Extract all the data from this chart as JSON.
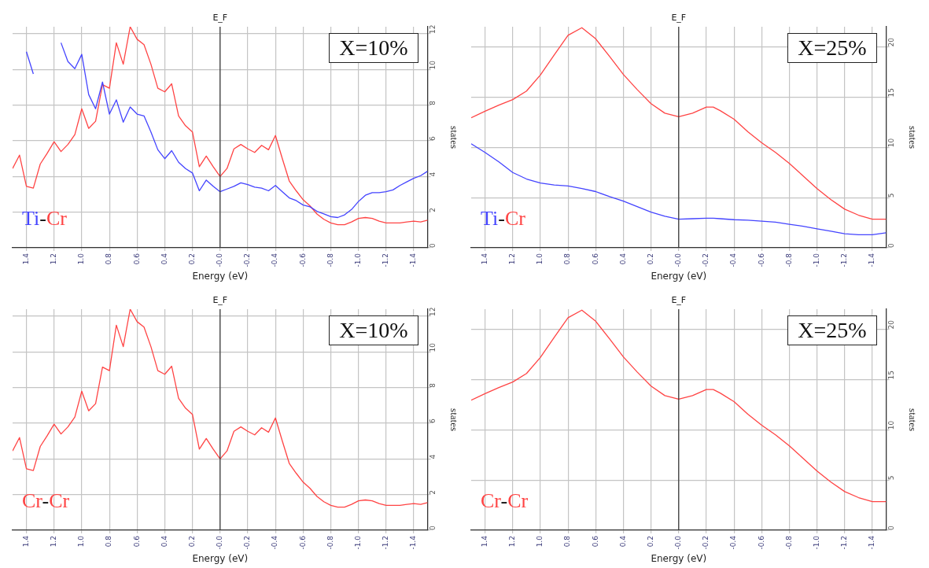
{
  "chart_data": [
    {
      "type": "line",
      "xlabel": "Energy (eV)",
      "ylabel": "states",
      "annotations": [
        "X=10%",
        "Ti-Cr"
      ],
      "grid": true,
      "marker": "none",
      "xlim": [
        1.5,
        -1.5
      ],
      "xticks": [
        1.4,
        1.2,
        {
          "value": 1,
          "label": "1.0"
        },
        0.8,
        0.6,
        0.4,
        0.2,
        {
          "value": 0,
          "label": "-0.0"
        },
        -0.2,
        -0.4,
        -0.6,
        -0.8,
        {
          "value": -1,
          "label": "-1.0"
        },
        -1.2,
        -1.4
      ],
      "ylim": [
        0,
        12.4
      ],
      "yticks": [
        0,
        2,
        4,
        6,
        8,
        10,
        12
      ],
      "ref_lines": [
        {
          "axis": "x",
          "value": 0,
          "label": "E_F",
          "color": "#333333"
        }
      ],
      "x": [
        1.5,
        1.45,
        1.4,
        1.35,
        1.3,
        1.25,
        1.2,
        1.15,
        1.1,
        1.05,
        1.0,
        0.95,
        0.9,
        0.85,
        0.8,
        0.75,
        0.7,
        0.65,
        0.6,
        0.55,
        0.5,
        0.45,
        0.4,
        0.35,
        0.3,
        0.25,
        0.2,
        0.15,
        0.1,
        0.05,
        0,
        -0.05,
        -0.1,
        -0.15,
        -0.2,
        -0.25,
        -0.3,
        -0.35,
        -0.4,
        -0.45,
        -0.5,
        -0.55,
        -0.6,
        -0.65,
        -0.7,
        -0.75,
        -0.8,
        -0.85,
        -0.9,
        -0.95,
        -1.0,
        -1.05,
        -1.1,
        -1.15,
        -1.2,
        -1.25,
        -1.3,
        -1.35,
        -1.4,
        -1.45,
        -1.5
      ],
      "series": [
        {
          "color": "#4444ff",
          "values": [
            null,
            null,
            11.0,
            9.75,
            null,
            null,
            null,
            11.5,
            10.45,
            10.05,
            10.85,
            8.6,
            7.8,
            9.3,
            7.5,
            8.3,
            7.05,
            7.9,
            7.5,
            7.4,
            6.5,
            5.5,
            5.0,
            5.45,
            4.8,
            4.45,
            4.2,
            3.2,
            3.8,
            3.45,
            3.15,
            3.3,
            3.45,
            3.65,
            3.55,
            3.4,
            3.35,
            3.2,
            3.5,
            3.15,
            2.8,
            2.65,
            2.4,
            2.3,
            2.05,
            1.9,
            1.75,
            1.7,
            1.85,
            2.15,
            2.6,
            2.95,
            3.1,
            3.1,
            3.15,
            3.25,
            3.5,
            3.7,
            3.9,
            4.05,
            4.3
          ]
        },
        {
          "color": "#ff4444",
          "values": [
            4.45,
            5.2,
            3.45,
            3.35,
            4.7,
            5.3,
            5.95,
            5.4,
            5.8,
            6.35,
            7.8,
            6.7,
            7.1,
            9.15,
            8.95,
            11.5,
            10.3,
            12.4,
            11.7,
            11.4,
            10.3,
            8.95,
            8.75,
            9.2,
            7.4,
            6.85,
            6.5,
            4.55,
            5.15,
            4.55,
            4.0,
            4.45,
            5.55,
            5.8,
            5.55,
            5.35,
            5.75,
            5.5,
            6.3,
            5.0,
            3.75,
            3.2,
            2.7,
            2.35,
            1.9,
            1.6,
            1.4,
            1.3,
            1.3,
            1.45,
            1.65,
            1.7,
            1.65,
            1.5,
            1.4,
            1.4,
            1.4,
            1.45,
            1.5,
            1.45,
            1.55
          ]
        }
      ]
    },
    {
      "type": "line",
      "xlabel": "Energy (eV)",
      "ylabel": "states",
      "annotations": [
        "X=25%",
        "Ti-Cr"
      ],
      "grid": true,
      "marker": "none",
      "xlim": [
        1.5,
        -1.5
      ],
      "xticks": [
        1.4,
        1.2,
        {
          "value": 1,
          "label": "1.0"
        },
        0.8,
        0.6,
        0.4,
        0.2,
        {
          "value": 0,
          "label": "-0.0"
        },
        -0.2,
        -0.4,
        -0.6,
        -0.8,
        {
          "value": -1,
          "label": "-1.0"
        },
        -1.2,
        -1.4
      ],
      "ylim": [
        0,
        22
      ],
      "yticks": [
        0,
        5,
        10,
        15,
        20
      ],
      "ref_lines": [
        {
          "axis": "x",
          "value": 0,
          "label": "E_F",
          "color": "#333333"
        }
      ],
      "x": [
        1.5,
        1.4,
        1.3,
        1.2,
        1.1,
        1.0,
        0.9,
        0.8,
        0.7,
        0.6,
        0.5,
        0.4,
        0.3,
        0.2,
        0.1,
        0,
        -0.1,
        -0.2,
        -0.25,
        -0.3,
        -0.4,
        -0.5,
        -0.6,
        -0.7,
        -0.8,
        -0.9,
        -1.0,
        -1.1,
        -1.2,
        -1.3,
        -1.4,
        -1.5
      ],
      "series": [
        {
          "color": "#4444ff",
          "values": [
            10.35,
            9.5,
            8.55,
            7.5,
            6.85,
            6.45,
            6.25,
            6.15,
            5.9,
            5.6,
            5.1,
            4.65,
            4.1,
            3.55,
            3.15,
            2.85,
            2.9,
            2.95,
            2.95,
            2.9,
            2.8,
            2.75,
            2.65,
            2.55,
            2.35,
            2.15,
            1.9,
            1.65,
            1.4,
            1.3,
            1.3,
            1.5
          ]
        },
        {
          "color": "#ff4444",
          "values": [
            12.95,
            13.6,
            14.2,
            14.75,
            15.6,
            17.2,
            19.2,
            21.15,
            21.9,
            20.8,
            19.05,
            17.25,
            15.75,
            14.35,
            13.4,
            13.05,
            13.4,
            14.0,
            14.0,
            13.65,
            12.8,
            11.55,
            10.45,
            9.5,
            8.4,
            7.15,
            5.9,
            4.8,
            3.85,
            3.25,
            2.85,
            2.85
          ]
        }
      ]
    },
    {
      "type": "line",
      "xlabel": "Energy (eV)",
      "ylabel": "states",
      "annotations": [
        "X=10%",
        "Cr-Cr"
      ],
      "grid": true,
      "marker": "none",
      "xlim": [
        1.5,
        -1.5
      ],
      "xticks": [
        1.4,
        1.2,
        {
          "value": 1,
          "label": "1.0"
        },
        0.8,
        0.6,
        0.4,
        0.2,
        {
          "value": 0,
          "label": "-0.0"
        },
        -0.2,
        -0.4,
        -0.6,
        -0.8,
        {
          "value": -1,
          "label": "-1.0"
        },
        -1.2,
        -1.4
      ],
      "ylim": [
        0,
        12.4
      ],
      "yticks": [
        0,
        2,
        4,
        6,
        8,
        10,
        12
      ],
      "ref_lines": [
        {
          "axis": "x",
          "value": 0,
          "label": "E_F",
          "color": "#333333"
        }
      ],
      "x": [
        1.5,
        1.45,
        1.4,
        1.35,
        1.3,
        1.25,
        1.2,
        1.15,
        1.1,
        1.05,
        1.0,
        0.95,
        0.9,
        0.85,
        0.8,
        0.75,
        0.7,
        0.65,
        0.6,
        0.55,
        0.5,
        0.45,
        0.4,
        0.35,
        0.3,
        0.25,
        0.2,
        0.15,
        0.1,
        0.05,
        0,
        -0.05,
        -0.1,
        -0.15,
        -0.2,
        -0.25,
        -0.3,
        -0.35,
        -0.4,
        -0.45,
        -0.5,
        -0.55,
        -0.6,
        -0.65,
        -0.7,
        -0.75,
        -0.8,
        -0.85,
        -0.9,
        -0.95,
        -1.0,
        -1.05,
        -1.1,
        -1.15,
        -1.2,
        -1.25,
        -1.3,
        -1.35,
        -1.4,
        -1.45,
        -1.5
      ],
      "series": [
        {
          "color": "#ff4444",
          "values": [
            4.45,
            5.2,
            3.45,
            3.35,
            4.7,
            5.3,
            5.95,
            5.4,
            5.8,
            6.35,
            7.8,
            6.7,
            7.1,
            9.15,
            8.95,
            11.5,
            10.3,
            12.4,
            11.7,
            11.4,
            10.3,
            8.95,
            8.75,
            9.2,
            7.4,
            6.85,
            6.5,
            4.55,
            5.15,
            4.55,
            4.0,
            4.45,
            5.55,
            5.8,
            5.55,
            5.35,
            5.75,
            5.5,
            6.3,
            5.0,
            3.75,
            3.2,
            2.7,
            2.35,
            1.9,
            1.6,
            1.4,
            1.3,
            1.3,
            1.45,
            1.65,
            1.7,
            1.65,
            1.5,
            1.4,
            1.4,
            1.4,
            1.45,
            1.5,
            1.45,
            1.55
          ]
        }
      ]
    },
    {
      "type": "line",
      "xlabel": "Energy (eV)",
      "ylabel": "states",
      "annotations": [
        "X=25%",
        "Cr-Cr"
      ],
      "grid": true,
      "marker": "none",
      "xlim": [
        1.5,
        -1.5
      ],
      "xticks": [
        1.4,
        1.2,
        {
          "value": 1,
          "label": "1.0"
        },
        0.8,
        0.6,
        0.4,
        0.2,
        {
          "value": 0,
          "label": "-0.0"
        },
        -0.2,
        -0.4,
        -0.6,
        -0.8,
        {
          "value": -1,
          "label": "-1.0"
        },
        -1.2,
        -1.4
      ],
      "ylim": [
        0,
        22
      ],
      "yticks": [
        0,
        5,
        10,
        15,
        20
      ],
      "ref_lines": [
        {
          "axis": "x",
          "value": 0,
          "label": "E_F",
          "color": "#333333"
        }
      ],
      "x": [
        1.5,
        1.4,
        1.3,
        1.2,
        1.1,
        1.0,
        0.9,
        0.8,
        0.7,
        0.6,
        0.5,
        0.4,
        0.3,
        0.2,
        0.1,
        0,
        -0.1,
        -0.2,
        -0.25,
        -0.3,
        -0.4,
        -0.5,
        -0.6,
        -0.7,
        -0.8,
        -0.9,
        -1.0,
        -1.1,
        -1.2,
        -1.3,
        -1.4,
        -1.5
      ],
      "series": [
        {
          "color": "#ff4444",
          "values": [
            12.95,
            13.6,
            14.2,
            14.75,
            15.6,
            17.2,
            19.2,
            21.15,
            21.9,
            20.8,
            19.05,
            17.25,
            15.75,
            14.35,
            13.4,
            13.05,
            13.4,
            14.0,
            14.0,
            13.65,
            12.8,
            11.55,
            10.45,
            9.5,
            8.4,
            7.15,
            5.9,
            4.8,
            3.85,
            3.25,
            2.85,
            2.85
          ]
        }
      ]
    }
  ]
}
